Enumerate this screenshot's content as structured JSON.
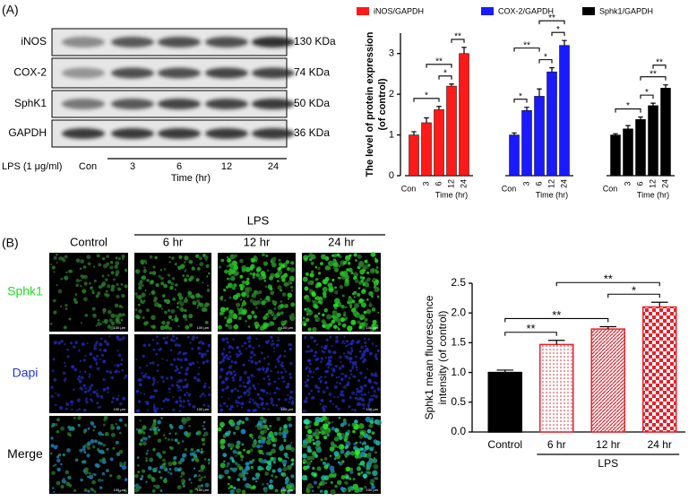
{
  "panel_labels": [
    "(A)",
    "(B)"
  ],
  "blot": {
    "rows": [
      {
        "name": "iNOS",
        "size": "130 KDa"
      },
      {
        "name": "COX-2",
        "size": "74 KDa"
      },
      {
        "name": "SphK1",
        "size": "50 KDa"
      },
      {
        "name": "GAPDH",
        "size": "36 KDa"
      }
    ],
    "treatment": "LPS (1 μg/ml)",
    "lanes": [
      "Con",
      "3",
      "6",
      "12",
      "24"
    ],
    "time_label": "Time (hr)"
  },
  "images": {
    "group": "LPS",
    "columns": [
      "Control",
      "6 hr",
      "12 hr",
      "24 hr"
    ],
    "rows": [
      {
        "name": "Sphk1",
        "color": "#22dd22"
      },
      {
        "name": "Dapi",
        "color": "#2233dd"
      },
      {
        "name": "Merge",
        "color": "#000000"
      }
    ],
    "scale_bar": "100 μm"
  },
  "chart_data": [
    {
      "type": "bar",
      "y_label": [
        "The level of protein expression",
        "(of control)"
      ],
      "x_label": "Time (hr)",
      "categories": [
        "Con",
        "3",
        "6",
        "12",
        "24"
      ],
      "series": [
        {
          "name": "iNOS/GAPDH",
          "color": "#ff1a1a",
          "values": [
            1.0,
            1.3,
            1.62,
            2.2,
            3.0
          ],
          "errors": [
            0.08,
            0.12,
            0.08,
            0.05,
            0.15
          ],
          "brackets": [
            {
              "from": 0,
              "to": 2,
              "label": "*"
            },
            {
              "from": 2,
              "to": 3,
              "label": "*"
            },
            {
              "from": 1,
              "to": 3,
              "label": "**"
            },
            {
              "from": 3,
              "to": 4,
              "label": "**"
            }
          ]
        },
        {
          "name": "COX-2/GAPDH",
          "color": "#1a1aff",
          "values": [
            1.0,
            1.6,
            1.95,
            2.55,
            3.2
          ],
          "errors": [
            0.05,
            0.08,
            0.18,
            0.1,
            0.12
          ],
          "brackets": [
            {
              "from": 0,
              "to": 1,
              "label": "*"
            },
            {
              "from": 2,
              "to": 3,
              "label": "*"
            },
            {
              "from": 0,
              "to": 2,
              "label": "**"
            },
            {
              "from": 3,
              "to": 4,
              "label": "*"
            },
            {
              "from": 2,
              "to": 4,
              "label": "**"
            }
          ]
        },
        {
          "name": "Sphk1/GAPDH",
          "color": "#000000",
          "values": [
            1.0,
            1.15,
            1.38,
            1.72,
            2.15
          ],
          "errors": [
            0.03,
            0.08,
            0.06,
            0.06,
            0.08
          ],
          "brackets": [
            {
              "from": 0,
              "to": 2,
              "label": "*"
            },
            {
              "from": 2,
              "to": 3,
              "label": "*"
            },
            {
              "from": 2,
              "to": 4,
              "label": "**"
            },
            {
              "from": 3,
              "to": 4,
              "label": "**"
            }
          ]
        }
      ],
      "ylim": [
        0,
        3.5
      ],
      "yticks": [
        0,
        1,
        2,
        3
      ]
    },
    {
      "type": "bar",
      "y_label": [
        "Sphk1 mean fluorescence",
        "intensity (of control)"
      ],
      "categories": [
        "Control",
        "6 hr",
        "12 hr",
        "24 hr"
      ],
      "values": [
        1.0,
        1.47,
        1.73,
        2.1
      ],
      "errors": [
        0.04,
        0.07,
        0.04,
        0.08
      ],
      "colors": [
        "#000000",
        "#e8202a",
        "#e8202a",
        "#e8202a"
      ],
      "patterns": [
        "solid",
        "dots",
        "hatch",
        "checker"
      ],
      "group": {
        "label": "LPS",
        "from": 1,
        "to": 3
      },
      "brackets": [
        {
          "from": 0,
          "to": 1,
          "label": "**"
        },
        {
          "from": 0,
          "to": 2,
          "label": "**"
        },
        {
          "from": 2,
          "to": 3,
          "label": "*"
        },
        {
          "from": 1,
          "to": 3,
          "label": "**"
        }
      ],
      "ylim": [
        0,
        2.5
      ],
      "yticks": [
        {
          "value": 0,
          "label": "0.0"
        },
        {
          "value": 0.5,
          "label": "0.5"
        },
        {
          "value": 1,
          "label": "1.0"
        },
        {
          "value": 1.5,
          "label": "1.5"
        },
        {
          "value": 2,
          "label": "2.0"
        },
        {
          "value": 2.5,
          "label": "2.5"
        }
      ]
    }
  ]
}
